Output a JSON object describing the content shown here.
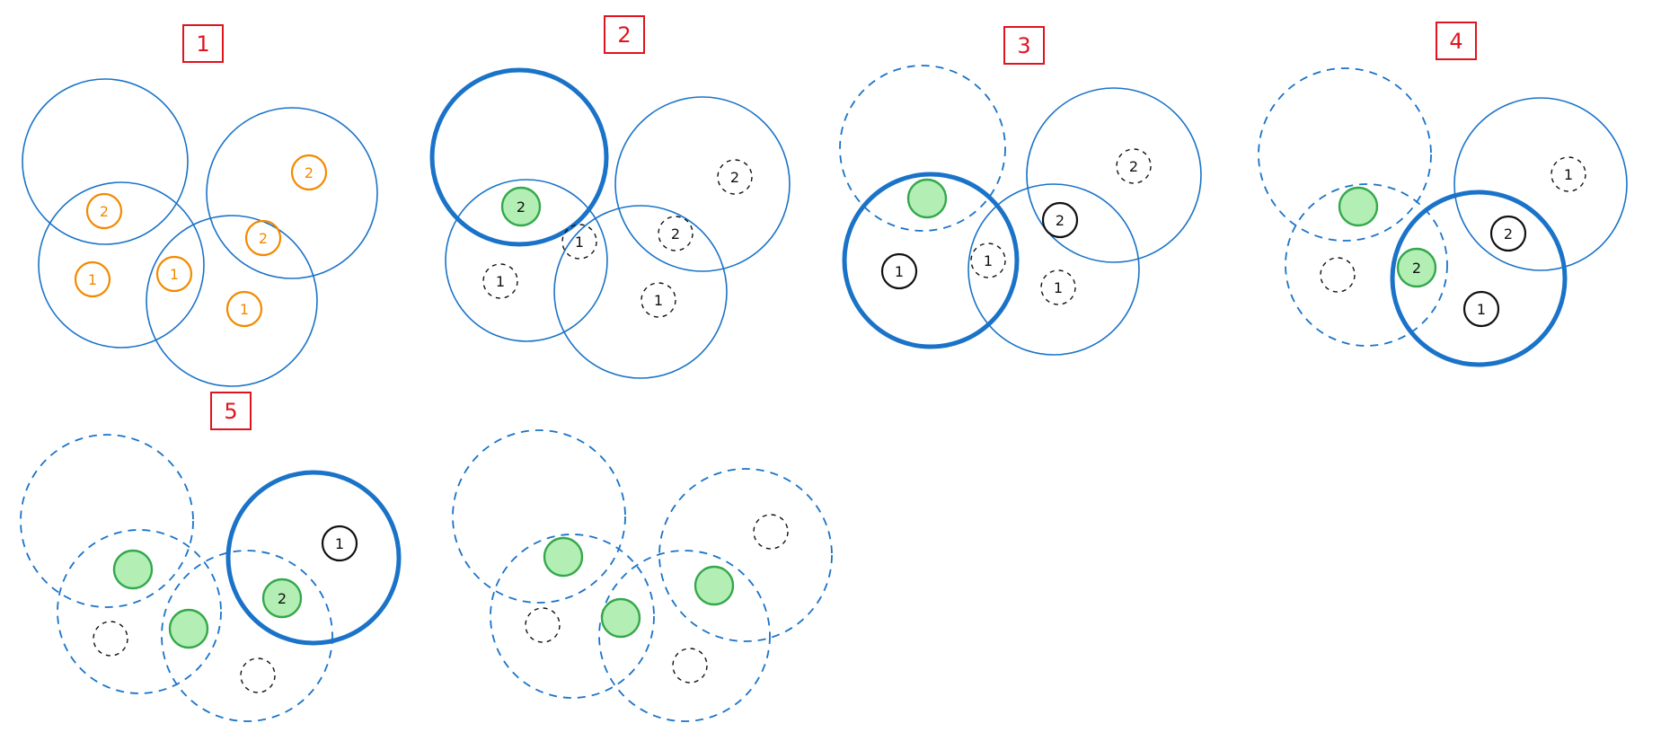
{
  "colors": {
    "circle": "#1a73c8",
    "step_box": "#e0141e",
    "orange": "#f28a00",
    "black": "#111111",
    "green_fill": "#b3efb5",
    "green_stroke": "#34a84b"
  },
  "panels": [
    {
      "step": "1",
      "circles": [
        {
          "style": "thin"
        },
        {
          "style": "thin"
        },
        {
          "style": "thin"
        },
        {
          "style": "thin"
        }
      ],
      "nodes": [
        {
          "label": "2",
          "state": "orange"
        },
        {
          "label": "1",
          "state": "orange"
        },
        {
          "label": "2",
          "state": "orange"
        },
        {
          "label": "1",
          "state": "orange"
        },
        {
          "label": "2",
          "state": "orange"
        },
        {
          "label": "1",
          "state": "orange"
        }
      ]
    },
    {
      "step": "2",
      "circles": [
        {
          "style": "bold"
        },
        {
          "style": "thin"
        },
        {
          "style": "thin"
        },
        {
          "style": "thin"
        }
      ],
      "nodes": [
        {
          "label": "2",
          "state": "green"
        },
        {
          "label": "1",
          "state": "dashed"
        },
        {
          "label": "2",
          "state": "dashed"
        },
        {
          "label": "1",
          "state": "dashed"
        },
        {
          "label": "2",
          "state": "dashed"
        },
        {
          "label": "1",
          "state": "dashed"
        }
      ]
    },
    {
      "step": "3",
      "circles": [
        {
          "style": "dashed"
        },
        {
          "style": "bold"
        },
        {
          "style": "thin"
        },
        {
          "style": "thin"
        }
      ],
      "nodes": [
        {
          "label": "",
          "state": "green"
        },
        {
          "label": "1",
          "state": "solid"
        },
        {
          "label": "2",
          "state": "solid"
        },
        {
          "label": "1",
          "state": "dashed"
        },
        {
          "label": "2",
          "state": "dashed"
        },
        {
          "label": "1",
          "state": "dashed"
        }
      ]
    },
    {
      "step": "4",
      "circles": [
        {
          "style": "dashed"
        },
        {
          "style": "dashed"
        },
        {
          "style": "thin"
        },
        {
          "style": "bold"
        }
      ],
      "nodes": [
        {
          "label": "",
          "state": "green"
        },
        {
          "label": "",
          "state": "dashed"
        },
        {
          "label": "2",
          "state": "green"
        },
        {
          "label": "1",
          "state": "solid"
        },
        {
          "label": "2",
          "state": "solid"
        },
        {
          "label": "1",
          "state": "dashed"
        }
      ]
    },
    {
      "step": "5",
      "circles": [
        {
          "style": "dashed"
        },
        {
          "style": "dashed"
        },
        {
          "style": "bold"
        },
        {
          "style": "dashed"
        }
      ],
      "nodes": [
        {
          "label": "",
          "state": "green"
        },
        {
          "label": "",
          "state": "dashed"
        },
        {
          "label": "",
          "state": "green"
        },
        {
          "label": "",
          "state": "dashed"
        },
        {
          "label": "2",
          "state": "green"
        },
        {
          "label": "1",
          "state": "solid"
        }
      ]
    },
    {
      "step": "",
      "circles": [
        {
          "style": "dashed"
        },
        {
          "style": "dashed"
        },
        {
          "style": "dashed"
        },
        {
          "style": "dashed"
        }
      ],
      "nodes": [
        {
          "label": "",
          "state": "green"
        },
        {
          "label": "",
          "state": "dashed"
        },
        {
          "label": "",
          "state": "green"
        },
        {
          "label": "",
          "state": "dashed"
        },
        {
          "label": "",
          "state": "green"
        },
        {
          "label": "",
          "state": "dashed"
        }
      ]
    }
  ]
}
